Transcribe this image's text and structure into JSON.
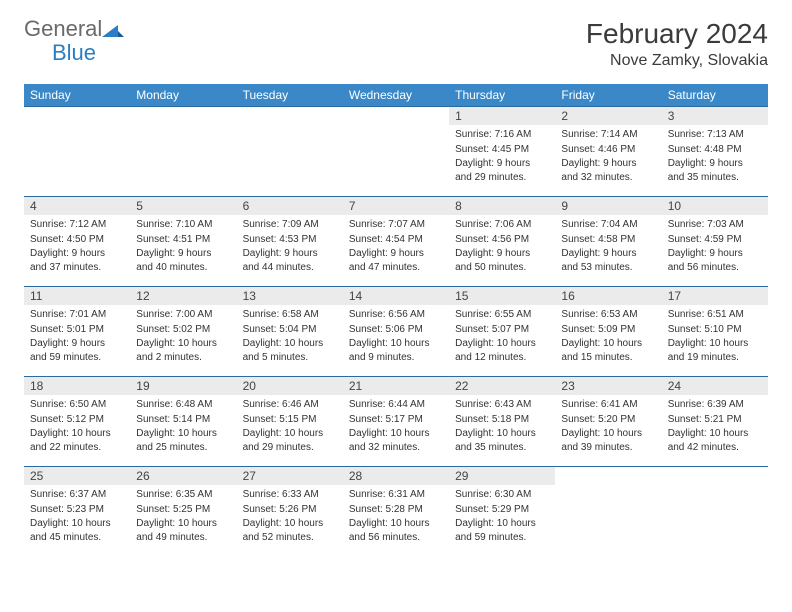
{
  "brand": {
    "word1": "General",
    "word2": "Blue"
  },
  "title": "February 2024",
  "location": "Nove Zamky, Slovakia",
  "colors": {
    "header_bg": "#3a88c8",
    "header_text": "#ffffff",
    "row_border": "#2a6aa3",
    "daynum_bg": "#ebebeb",
    "brand_gray": "#6a6a6a",
    "brand_blue": "#2a7ec3"
  },
  "weekdays": [
    "Sunday",
    "Monday",
    "Tuesday",
    "Wednesday",
    "Thursday",
    "Friday",
    "Saturday"
  ],
  "weeks": [
    [
      null,
      null,
      null,
      null,
      {
        "n": "1",
        "sunrise": "7:16 AM",
        "sunset": "4:45 PM",
        "daylight": "9 hours and 29 minutes."
      },
      {
        "n": "2",
        "sunrise": "7:14 AM",
        "sunset": "4:46 PM",
        "daylight": "9 hours and 32 minutes."
      },
      {
        "n": "3",
        "sunrise": "7:13 AM",
        "sunset": "4:48 PM",
        "daylight": "9 hours and 35 minutes."
      }
    ],
    [
      {
        "n": "4",
        "sunrise": "7:12 AM",
        "sunset": "4:50 PM",
        "daylight": "9 hours and 37 minutes."
      },
      {
        "n": "5",
        "sunrise": "7:10 AM",
        "sunset": "4:51 PM",
        "daylight": "9 hours and 40 minutes."
      },
      {
        "n": "6",
        "sunrise": "7:09 AM",
        "sunset": "4:53 PM",
        "daylight": "9 hours and 44 minutes."
      },
      {
        "n": "7",
        "sunrise": "7:07 AM",
        "sunset": "4:54 PM",
        "daylight": "9 hours and 47 minutes."
      },
      {
        "n": "8",
        "sunrise": "7:06 AM",
        "sunset": "4:56 PM",
        "daylight": "9 hours and 50 minutes."
      },
      {
        "n": "9",
        "sunrise": "7:04 AM",
        "sunset": "4:58 PM",
        "daylight": "9 hours and 53 minutes."
      },
      {
        "n": "10",
        "sunrise": "7:03 AM",
        "sunset": "4:59 PM",
        "daylight": "9 hours and 56 minutes."
      }
    ],
    [
      {
        "n": "11",
        "sunrise": "7:01 AM",
        "sunset": "5:01 PM",
        "daylight": "9 hours and 59 minutes."
      },
      {
        "n": "12",
        "sunrise": "7:00 AM",
        "sunset": "5:02 PM",
        "daylight": "10 hours and 2 minutes."
      },
      {
        "n": "13",
        "sunrise": "6:58 AM",
        "sunset": "5:04 PM",
        "daylight": "10 hours and 5 minutes."
      },
      {
        "n": "14",
        "sunrise": "6:56 AM",
        "sunset": "5:06 PM",
        "daylight": "10 hours and 9 minutes."
      },
      {
        "n": "15",
        "sunrise": "6:55 AM",
        "sunset": "5:07 PM",
        "daylight": "10 hours and 12 minutes."
      },
      {
        "n": "16",
        "sunrise": "6:53 AM",
        "sunset": "5:09 PM",
        "daylight": "10 hours and 15 minutes."
      },
      {
        "n": "17",
        "sunrise": "6:51 AM",
        "sunset": "5:10 PM",
        "daylight": "10 hours and 19 minutes."
      }
    ],
    [
      {
        "n": "18",
        "sunrise": "6:50 AM",
        "sunset": "5:12 PM",
        "daylight": "10 hours and 22 minutes."
      },
      {
        "n": "19",
        "sunrise": "6:48 AM",
        "sunset": "5:14 PM",
        "daylight": "10 hours and 25 minutes."
      },
      {
        "n": "20",
        "sunrise": "6:46 AM",
        "sunset": "5:15 PM",
        "daylight": "10 hours and 29 minutes."
      },
      {
        "n": "21",
        "sunrise": "6:44 AM",
        "sunset": "5:17 PM",
        "daylight": "10 hours and 32 minutes."
      },
      {
        "n": "22",
        "sunrise": "6:43 AM",
        "sunset": "5:18 PM",
        "daylight": "10 hours and 35 minutes."
      },
      {
        "n": "23",
        "sunrise": "6:41 AM",
        "sunset": "5:20 PM",
        "daylight": "10 hours and 39 minutes."
      },
      {
        "n": "24",
        "sunrise": "6:39 AM",
        "sunset": "5:21 PM",
        "daylight": "10 hours and 42 minutes."
      }
    ],
    [
      {
        "n": "25",
        "sunrise": "6:37 AM",
        "sunset": "5:23 PM",
        "daylight": "10 hours and 45 minutes."
      },
      {
        "n": "26",
        "sunrise": "6:35 AM",
        "sunset": "5:25 PM",
        "daylight": "10 hours and 49 minutes."
      },
      {
        "n": "27",
        "sunrise": "6:33 AM",
        "sunset": "5:26 PM",
        "daylight": "10 hours and 52 minutes."
      },
      {
        "n": "28",
        "sunrise": "6:31 AM",
        "sunset": "5:28 PM",
        "daylight": "10 hours and 56 minutes."
      },
      {
        "n": "29",
        "sunrise": "6:30 AM",
        "sunset": "5:29 PM",
        "daylight": "10 hours and 59 minutes."
      },
      null,
      null
    ]
  ],
  "labels": {
    "sunrise": "Sunrise:",
    "sunset": "Sunset:",
    "daylight": "Daylight:"
  }
}
